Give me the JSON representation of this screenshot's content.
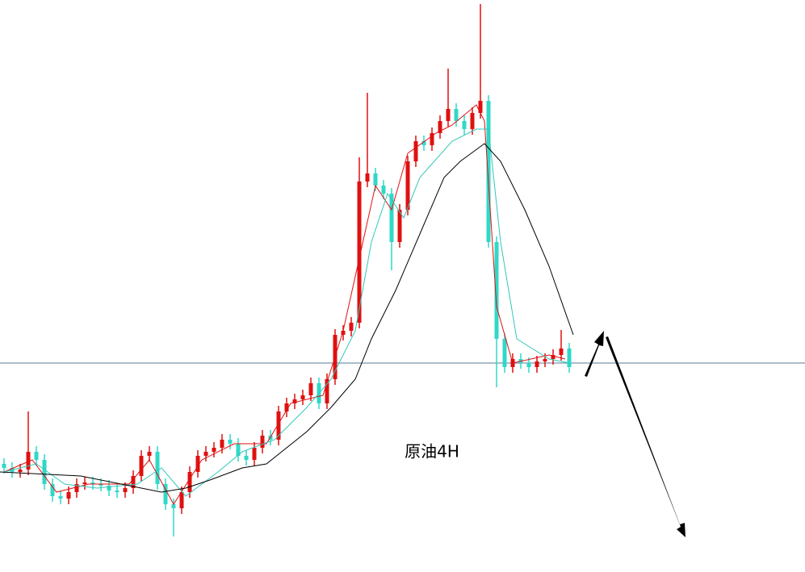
{
  "chart_data": {
    "type": "candlestick",
    "annotation": "原油4H",
    "xlim": [
      -0.5,
      99.2
    ],
    "ylim": [
      0,
      709
    ],
    "up_color": "#e01010",
    "down_color": "#30d8c8",
    "open": [
      134,
      129,
      124,
      127,
      149,
      139,
      109,
      94,
      91,
      99,
      109,
      111,
      109,
      107,
      101,
      99,
      104,
      119,
      144,
      149,
      109,
      84,
      79,
      99,
      124,
      144,
      149,
      154,
      164,
      159,
      144,
      139,
      154,
      169,
      164,
      199,
      209,
      214,
      219,
      234,
      209,
      239,
      294,
      299,
      309,
      484,
      494,
      479,
      469,
      409,
      449,
      509,
      534,
      529,
      544,
      559,
      574,
      559,
      549,
      569,
      584,
      409,
      289,
      254,
      264,
      259,
      254,
      261,
      264,
      269,
      277
    ],
    "high": [
      141,
      136,
      134,
      199,
      156,
      146,
      116,
      101,
      106,
      116,
      118,
      118,
      116,
      114,
      108,
      111,
      126,
      151,
      156,
      156,
      116,
      91,
      106,
      131,
      151,
      156,
      161,
      171,
      171,
      166,
      151,
      161,
      176,
      176,
      206,
      216,
      221,
      226,
      241,
      241,
      246,
      301,
      306,
      316,
      514,
      594,
      501,
      486,
      476,
      456,
      516,
      541,
      541,
      551,
      566,
      624,
      581,
      566,
      576,
      704,
      591,
      416,
      296,
      271,
      271,
      266,
      268,
      271,
      276,
      300,
      284
    ],
    "low": [
      122,
      117,
      117,
      120,
      132,
      102,
      87,
      84,
      84,
      92,
      102,
      102,
      100,
      94,
      92,
      92,
      97,
      112,
      137,
      102,
      77,
      44,
      72,
      92,
      117,
      137,
      142,
      147,
      152,
      137,
      132,
      132,
      147,
      157,
      157,
      192,
      202,
      207,
      212,
      202,
      202,
      232,
      287,
      292,
      302,
      477,
      472,
      462,
      374,
      402,
      442,
      502,
      522,
      522,
      537,
      552,
      552,
      542,
      542,
      562,
      402,
      229,
      247,
      247,
      252,
      247,
      247,
      254,
      257,
      262,
      247
    ],
    "close": [
      129,
      124,
      127,
      149,
      139,
      109,
      94,
      91,
      99,
      109,
      111,
      109,
      107,
      101,
      99,
      104,
      119,
      144,
      149,
      109,
      84,
      79,
      99,
      124,
      144,
      149,
      154,
      164,
      159,
      144,
      139,
      154,
      169,
      164,
      199,
      209,
      214,
      219,
      234,
      209,
      239,
      294,
      299,
      309,
      484,
      494,
      479,
      469,
      409,
      449,
      509,
      534,
      529,
      544,
      559,
      574,
      559,
      549,
      569,
      584,
      409,
      289,
      254,
      264,
      259,
      254,
      261,
      264,
      269,
      277,
      254
    ],
    "series": [
      {
        "color": "#e01010",
        "x": [
          0,
          3.5,
          6.5,
          10.5,
          15.5,
          18,
          21,
          24.5,
          28.5,
          32.5,
          35.5,
          39.5,
          42,
          44,
          46,
          48,
          50,
          53.5,
          55.5,
          58.5,
          59.5,
          61,
          63,
          67.5,
          69.5
        ],
        "values": [
          124,
          139,
          99,
          109,
          109,
          139,
          84,
          139,
          159,
          159,
          209,
          219,
          299,
          389,
          479,
          449,
          519,
          544,
          554,
          579,
          559,
          329,
          259,
          269,
          264
        ]
      },
      {
        "color": "#30c8b8",
        "x": [
          0,
          4,
          7.5,
          11.5,
          16.5,
          19.5,
          22.5,
          26.5,
          29.5,
          33.5,
          37.5,
          40.5,
          43.5,
          45.5,
          47.5,
          49.5,
          51.5,
          55.5,
          58.5,
          60,
          61.5,
          63.5,
          67.5,
          70
        ],
        "values": [
          124,
          134,
          109,
          104,
          109,
          129,
          94,
          124,
          149,
          164,
          204,
          239,
          299,
          409,
          469,
          439,
          489,
          534,
          549,
          549,
          409,
          289,
          264,
          259
        ]
      },
      {
        "color": "#000000",
        "x": [
          -0.5,
          9.5,
          14.5,
          19.5,
          22.5,
          25.5,
          29.5,
          32.5,
          37.5,
          40.5,
          43.5,
          45.5,
          48.5,
          51.5,
          54.5,
          56.5,
          59.5,
          61.5,
          64.5,
          67.5,
          70.5
        ],
        "values": [
          124,
          119,
          109,
          99,
          104,
          114,
          129,
          134,
          174,
          204,
          239,
          289,
          349,
          419,
          489,
          509,
          531,
          509,
          449,
          379,
          294
        ]
      }
    ],
    "reference_line": 259,
    "reference_color": "#5a7a9a"
  }
}
